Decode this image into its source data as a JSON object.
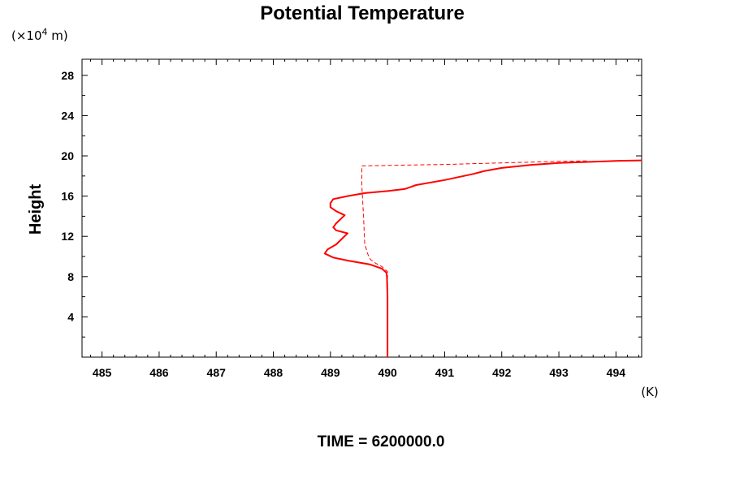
{
  "chart_data": {
    "type": "line",
    "title": "Potential Temperature",
    "ylabel": "Height",
    "y_unit_label": "(×10",
    "y_unit_exp": "4",
    "y_unit_tail": " m)",
    "xlabel_unit": "(K)",
    "footer": "TIME = 6200000.0",
    "xlim": [
      484.65,
      494.45
    ],
    "ylim": [
      0,
      29.6
    ],
    "x_ticks": [
      485,
      486,
      487,
      488,
      489,
      490,
      491,
      492,
      493,
      494
    ],
    "x_tick_labels": [
      "485",
      "486",
      "487",
      "488",
      "489",
      "490",
      "491",
      "492",
      "493",
      "494"
    ],
    "y_ticks": [
      4,
      8,
      12,
      16,
      20,
      24,
      28
    ],
    "y_tick_labels": [
      "4",
      "8",
      "12",
      "16",
      "20",
      "24",
      "28"
    ],
    "grid": false,
    "colors": {
      "line": "#ff0000",
      "axes": "#000000"
    },
    "series": [
      {
        "style": "solid",
        "x": [
          490.0,
          490.0,
          489.99,
          489.98,
          489.9,
          489.7,
          489.3,
          489.05,
          488.9,
          488.95,
          489.1,
          489.3,
          489.1,
          489.05,
          489.1,
          489.25,
          489.1,
          489.0,
          489.0,
          489.05,
          489.3,
          489.6,
          490.0,
          490.3,
          490.5,
          491.0,
          491.5,
          491.7,
          492.0,
          492.5,
          493.0,
          493.5,
          494.0,
          494.45
        ],
        "y": [
          0.0,
          6.0,
          8.0,
          8.4,
          8.8,
          9.2,
          9.6,
          9.9,
          10.3,
          10.7,
          11.2,
          12.3,
          12.6,
          12.9,
          13.3,
          14.1,
          14.5,
          14.9,
          15.3,
          15.7,
          16.0,
          16.3,
          16.5,
          16.7,
          17.1,
          17.6,
          18.2,
          18.5,
          18.8,
          19.1,
          19.3,
          19.4,
          19.5,
          19.55
        ]
      },
      {
        "style": "dashed",
        "x": [
          490.0,
          490.0,
          490.0,
          489.9,
          489.8,
          489.7,
          489.65,
          489.6,
          489.58,
          489.55,
          489.55,
          490.0,
          491.0,
          492.0,
          493.0,
          493.5
        ],
        "y": [
          0.0,
          6.0,
          8.5,
          9.0,
          9.3,
          9.7,
          10.3,
          11.3,
          14.0,
          17.0,
          19.0,
          19.05,
          19.15,
          19.3,
          19.45,
          19.5
        ]
      }
    ]
  }
}
